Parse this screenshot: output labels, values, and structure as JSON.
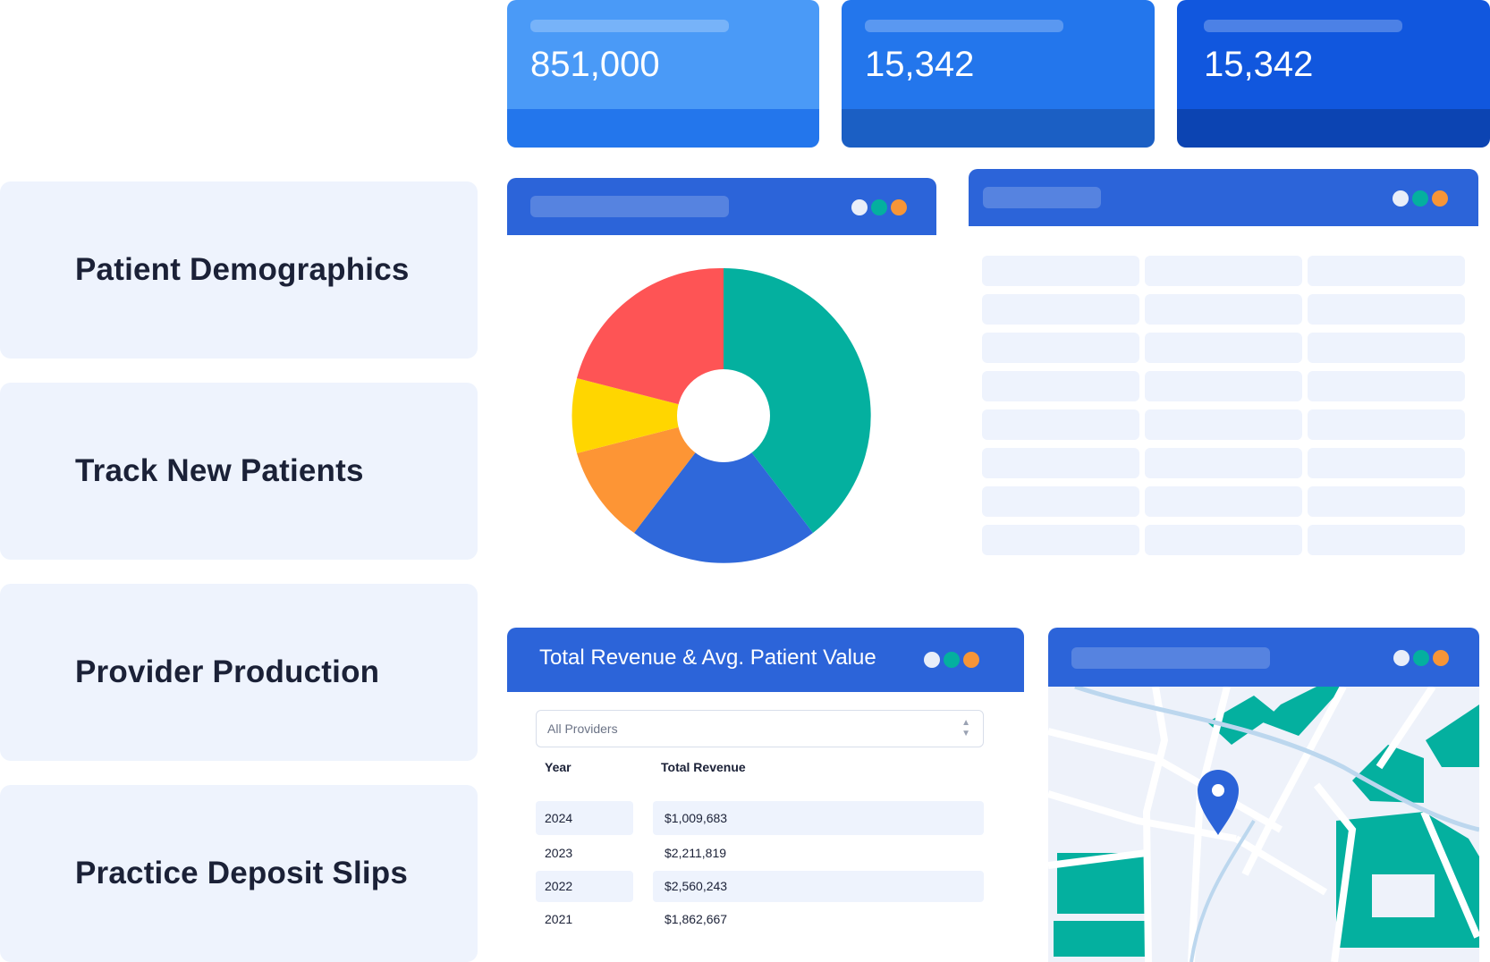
{
  "features": [
    {
      "label": "Patient Demographics"
    },
    {
      "label": "Track New Patients"
    },
    {
      "label": "Provider Production"
    },
    {
      "label": "Practice Deposit Slips"
    }
  ],
  "stats": [
    {
      "value": "851,000"
    },
    {
      "value": "15,342"
    },
    {
      "value": "15,342"
    }
  ],
  "revenue": {
    "title": "Total Revenue & Avg. Patient Value",
    "select_value": "All Providers",
    "col_year": "Year",
    "col_revenue": "Total Revenue",
    "rows": [
      {
        "year": "2024",
        "revenue": "$1,009,683"
      },
      {
        "year": "2023",
        "revenue": "$2,211,819"
      },
      {
        "year": "2022",
        "revenue": "$2,560,243"
      },
      {
        "year": "2021",
        "revenue": "$1,862,667"
      }
    ]
  },
  "colors": {
    "accent": "#2c64d9",
    "teal": "#04b09f",
    "orange": "#f79537",
    "red": "#fe5455",
    "yellow": "#ffd600",
    "blue": "#2f68da",
    "light_panel": "#eef3fd"
  },
  "icons": [
    "window-dot-icon",
    "map-pin-icon",
    "select-chevron-icon"
  ]
}
